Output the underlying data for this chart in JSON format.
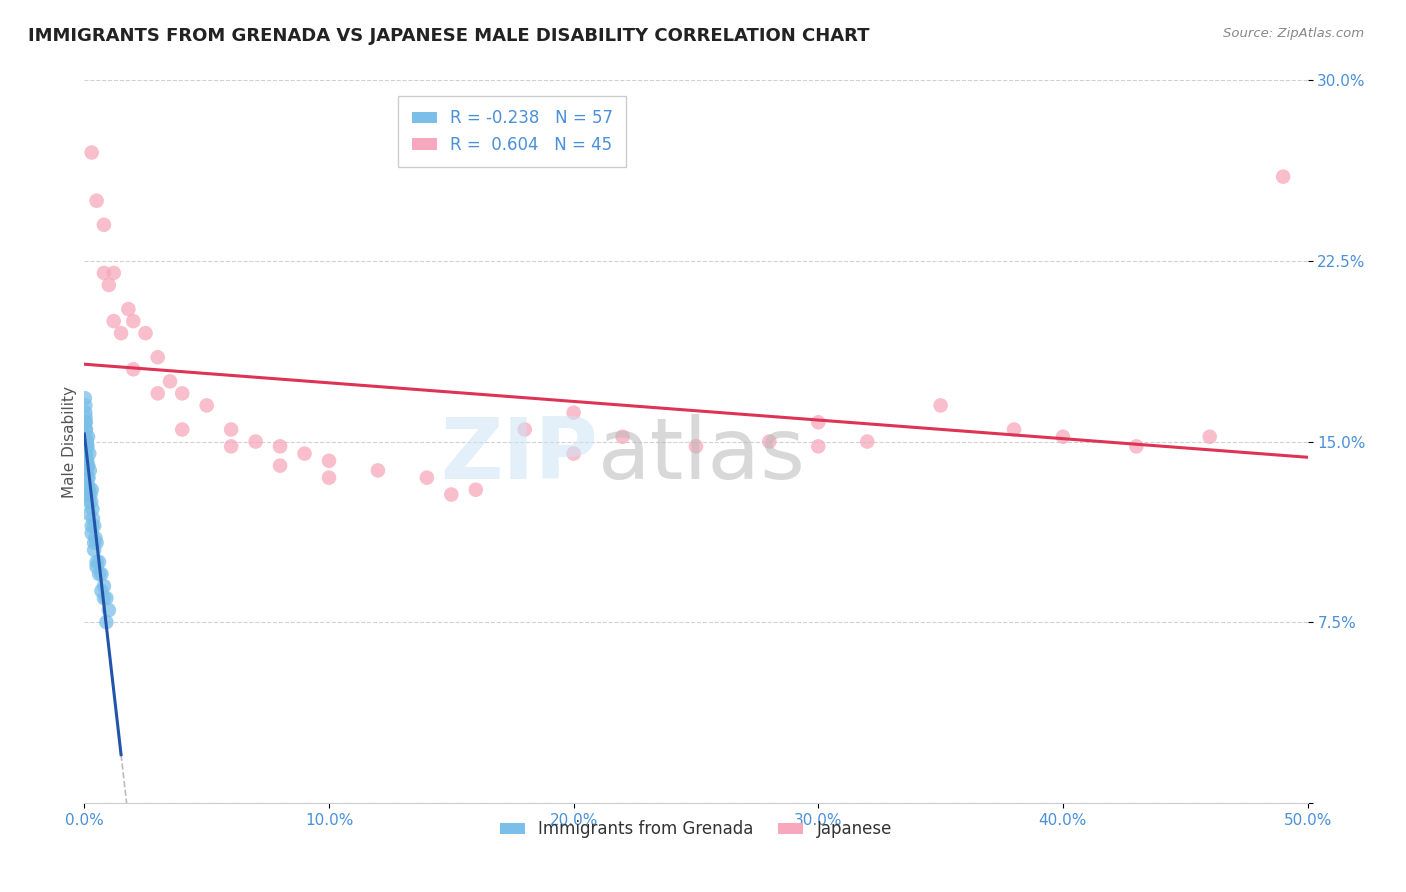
{
  "title": "IMMIGRANTS FROM GRENADA VS JAPANESE MALE DISABILITY CORRELATION CHART",
  "source": "Source: ZipAtlas.com",
  "xlabel_blue": "Immigrants from Grenada",
  "xlabel_pink": "Japanese",
  "ylabel": "Male Disability",
  "r_blue": -0.238,
  "n_blue": 57,
  "r_pink": 0.604,
  "n_pink": 45,
  "xlim": [
    0.0,
    0.5
  ],
  "ylim": [
    0.0,
    0.3
  ],
  "xticks": [
    0.0,
    0.1,
    0.2,
    0.3,
    0.4,
    0.5
  ],
  "yticks": [
    0.0,
    0.075,
    0.15,
    0.225,
    0.3
  ],
  "xtick_labels": [
    "0.0%",
    "10.0%",
    "20.0%",
    "30.0%",
    "40.0%",
    "50.0%"
  ],
  "ytick_labels": [
    "",
    "7.5%",
    "15.0%",
    "22.5%",
    "30.0%"
  ],
  "color_blue": "#7bbfe8",
  "color_pink": "#f7a8bc",
  "trendline_blue": "#2255aa",
  "trendline_pink": "#dd3355",
  "trendline_dashed_color": "#bbbbbb",
  "background_color": "#ffffff",
  "blue_scatter_x": [
    0.0002,
    0.0003,
    0.0004,
    0.0005,
    0.0006,
    0.0007,
    0.0008,
    0.0009,
    0.001,
    0.0012,
    0.0013,
    0.0015,
    0.0016,
    0.0017,
    0.0018,
    0.002,
    0.0022,
    0.0025,
    0.0028,
    0.003,
    0.0033,
    0.0035,
    0.004,
    0.0045,
    0.005,
    0.006,
    0.007,
    0.008,
    0.009,
    0.01,
    0.0003,
    0.0004,
    0.0005,
    0.0006,
    0.0007,
    0.0008,
    0.001,
    0.0012,
    0.0015,
    0.002,
    0.003,
    0.004,
    0.005,
    0.006,
    0.008,
    0.0002,
    0.0004,
    0.0006,
    0.0009,
    0.0012,
    0.0015,
    0.002,
    0.003,
    0.004,
    0.005,
    0.007,
    0.009
  ],
  "blue_scatter_y": [
    0.148,
    0.15,
    0.145,
    0.152,
    0.155,
    0.143,
    0.148,
    0.15,
    0.138,
    0.142,
    0.148,
    0.152,
    0.14,
    0.135,
    0.13,
    0.145,
    0.138,
    0.128,
    0.125,
    0.13,
    0.122,
    0.118,
    0.115,
    0.11,
    0.108,
    0.1,
    0.095,
    0.09,
    0.085,
    0.08,
    0.158,
    0.162,
    0.16,
    0.155,
    0.148,
    0.145,
    0.14,
    0.135,
    0.128,
    0.12,
    0.112,
    0.108,
    0.1,
    0.095,
    0.085,
    0.168,
    0.165,
    0.158,
    0.15,
    0.14,
    0.132,
    0.125,
    0.115,
    0.105,
    0.098,
    0.088,
    0.075
  ],
  "pink_scatter_x": [
    0.003,
    0.005,
    0.008,
    0.01,
    0.012,
    0.015,
    0.018,
    0.02,
    0.025,
    0.03,
    0.035,
    0.04,
    0.05,
    0.06,
    0.07,
    0.08,
    0.09,
    0.1,
    0.12,
    0.14,
    0.16,
    0.18,
    0.2,
    0.22,
    0.25,
    0.28,
    0.3,
    0.32,
    0.35,
    0.38,
    0.4,
    0.43,
    0.46,
    0.49,
    0.008,
    0.012,
    0.02,
    0.03,
    0.04,
    0.06,
    0.08,
    0.1,
    0.15,
    0.2,
    0.3
  ],
  "pink_scatter_y": [
    0.27,
    0.25,
    0.24,
    0.215,
    0.22,
    0.195,
    0.205,
    0.2,
    0.195,
    0.185,
    0.175,
    0.17,
    0.165,
    0.155,
    0.15,
    0.148,
    0.145,
    0.142,
    0.138,
    0.135,
    0.13,
    0.155,
    0.162,
    0.152,
    0.148,
    0.15,
    0.148,
    0.15,
    0.165,
    0.155,
    0.152,
    0.148,
    0.152,
    0.26,
    0.22,
    0.2,
    0.18,
    0.17,
    0.155,
    0.148,
    0.14,
    0.135,
    0.128,
    0.145,
    0.158
  ]
}
